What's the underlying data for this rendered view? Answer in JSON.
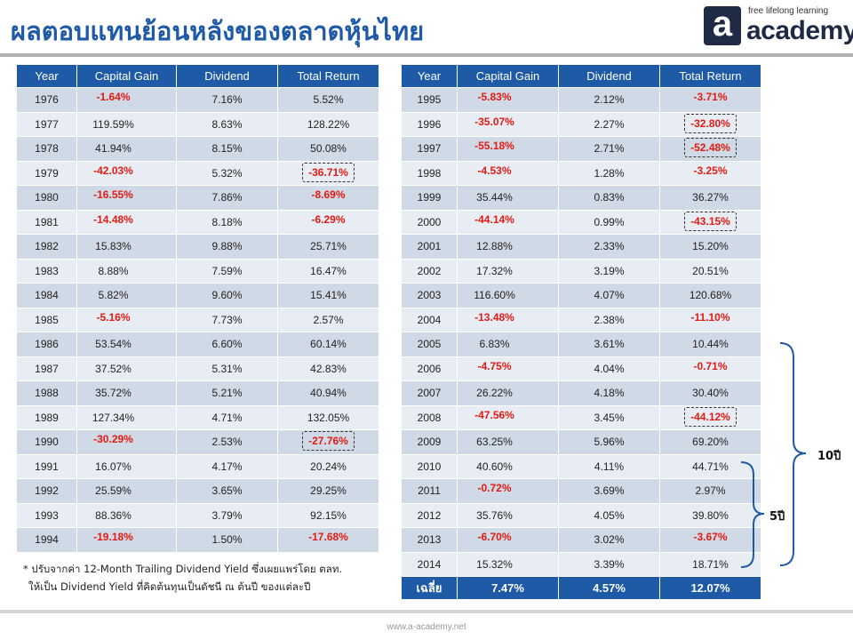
{
  "title": "ผลตอบแทนย้อนหลังของตลาดหุ้นไทย",
  "logo": {
    "tagline": "free lifelong learning",
    "mark": "a",
    "word": "academy"
  },
  "columns": {
    "year": "Year",
    "capital_gain": "Capital Gain",
    "dividend": "Dividend",
    "total_return": "Total Return"
  },
  "left_rows": [
    {
      "year": "1976",
      "capital_gain": "-1.64%",
      "dividend": "7.16%",
      "total_return": "5.52%"
    },
    {
      "year": "1977",
      "capital_gain": "119.59%",
      "dividend": "8.63%",
      "total_return": "128.22%"
    },
    {
      "year": "1978",
      "capital_gain": "41.94%",
      "dividend": "8.15%",
      "total_return": "50.08%"
    },
    {
      "year": "1979",
      "capital_gain": "-42.03%",
      "dividend": "5.32%",
      "total_return": "-36.71%"
    },
    {
      "year": "1980",
      "capital_gain": "-16.55%",
      "dividend": "7.86%",
      "total_return": "-8.69%"
    },
    {
      "year": "1981",
      "capital_gain": "-14.48%",
      "dividend": "8.18%",
      "total_return": "-6.29%"
    },
    {
      "year": "1982",
      "capital_gain": "15.83%",
      "dividend": "9.88%",
      "total_return": "25.71%"
    },
    {
      "year": "1983",
      "capital_gain": "8.88%",
      "dividend": "7.59%",
      "total_return": "16.47%"
    },
    {
      "year": "1984",
      "capital_gain": "5.82%",
      "dividend": "9.60%",
      "total_return": "15.41%"
    },
    {
      "year": "1985",
      "capital_gain": "-5.16%",
      "dividend": "7.73%",
      "total_return": "2.57%"
    },
    {
      "year": "1986",
      "capital_gain": "53.54%",
      "dividend": "6.60%",
      "total_return": "60.14%"
    },
    {
      "year": "1987",
      "capital_gain": "37.52%",
      "dividend": "5.31%",
      "total_return": "42.83%"
    },
    {
      "year": "1988",
      "capital_gain": "35.72%",
      "dividend": "5.21%",
      "total_return": "40.94%"
    },
    {
      "year": "1989",
      "capital_gain": "127.34%",
      "dividend": "4.71%",
      "total_return": "132.05%"
    },
    {
      "year": "1990",
      "capital_gain": "-30.29%",
      "dividend": "2.53%",
      "total_return": "-27.76%"
    },
    {
      "year": "1991",
      "capital_gain": "16.07%",
      "dividend": "4.17%",
      "total_return": "20.24%"
    },
    {
      "year": "1992",
      "capital_gain": "25.59%",
      "dividend": "3.65%",
      "total_return": "29.25%"
    },
    {
      "year": "1993",
      "capital_gain": "88.36%",
      "dividend": "3.79%",
      "total_return": "92.15%"
    },
    {
      "year": "1994",
      "capital_gain": "-19.18%",
      "dividend": "1.50%",
      "total_return": "-17.68%"
    }
  ],
  "right_rows": [
    {
      "year": "1995",
      "capital_gain": "-5.83%",
      "dividend": "2.12%",
      "total_return": "-3.71%"
    },
    {
      "year": "1996",
      "capital_gain": "-35.07%",
      "dividend": "2.27%",
      "total_return": "-32.80%"
    },
    {
      "year": "1997",
      "capital_gain": "-55.18%",
      "dividend": "2.71%",
      "total_return": "-52.48%"
    },
    {
      "year": "1998",
      "capital_gain": "-4.53%",
      "dividend": "1.28%",
      "total_return": "-3.25%"
    },
    {
      "year": "1999",
      "capital_gain": "35.44%",
      "dividend": "0.83%",
      "total_return": "36.27%"
    },
    {
      "year": "2000",
      "capital_gain": "-44.14%",
      "dividend": "0.99%",
      "total_return": "-43.15%"
    },
    {
      "year": "2001",
      "capital_gain": "12.88%",
      "dividend": "2.33%",
      "total_return": "15.20%"
    },
    {
      "year": "2002",
      "capital_gain": "17.32%",
      "dividend": "3.19%",
      "total_return": "20.51%"
    },
    {
      "year": "2003",
      "capital_gain": "116.60%",
      "dividend": "4.07%",
      "total_return": "120.68%"
    },
    {
      "year": "2004",
      "capital_gain": "-13.48%",
      "dividend": "2.38%",
      "total_return": "-11.10%"
    },
    {
      "year": "2005",
      "capital_gain": "6.83%",
      "dividend": "3.61%",
      "total_return": "10.44%"
    },
    {
      "year": "2006",
      "capital_gain": "-4.75%",
      "dividend": "4.04%",
      "total_return": "-0.71%"
    },
    {
      "year": "2007",
      "capital_gain": "26.22%",
      "dividend": "4.18%",
      "total_return": "30.40%"
    },
    {
      "year": "2008",
      "capital_gain": "-47.56%",
      "dividend": "3.45%",
      "total_return": "-44.12%"
    },
    {
      "year": "2009",
      "capital_gain": "63.25%",
      "dividend": "5.96%",
      "total_return": "69.20%"
    },
    {
      "year": "2010",
      "capital_gain": "40.60%",
      "dividend": "4.11%",
      "total_return": "44.71%"
    },
    {
      "year": "2011",
      "capital_gain": "-0.72%",
      "dividend": "3.69%",
      "total_return": "2.97%"
    },
    {
      "year": "2012",
      "capital_gain": "35.76%",
      "dividend": "4.05%",
      "total_return": "39.80%"
    },
    {
      "year": "2013",
      "capital_gain": "-6.70%",
      "dividend": "3.02%",
      "total_return": "-3.67%"
    },
    {
      "year": "2014",
      "capital_gain": "15.32%",
      "dividend": "3.39%",
      "total_return": "18.71%"
    }
  ],
  "average": {
    "label": "เฉลี่ย",
    "capital_gain": "7.47%",
    "dividend": "4.57%",
    "total_return": "12.07%"
  },
  "highlighted_years": [
    "1979",
    "1990",
    "1996",
    "1997",
    "2000",
    "2008"
  ],
  "colors": {
    "header": "#1f5aa6",
    "negative": "#e41b13",
    "row_dark": "#d0d9e6",
    "row_light": "#e8edf4"
  },
  "note": {
    "line1": "* ปรับจากค่า 12-Month Trailing Dividend Yield ซึ่งเผยแพร่โดย ตลท.",
    "line2": "ให้เป็น Dividend Yield ที่คิดต้นทุนเป็นดัชนี ณ ต้นปี ของแต่ละปี"
  },
  "brace_labels": {
    "ten_year": "10ปี",
    "five_year": "5ปี"
  },
  "footer_url": "www.a-academy.net"
}
